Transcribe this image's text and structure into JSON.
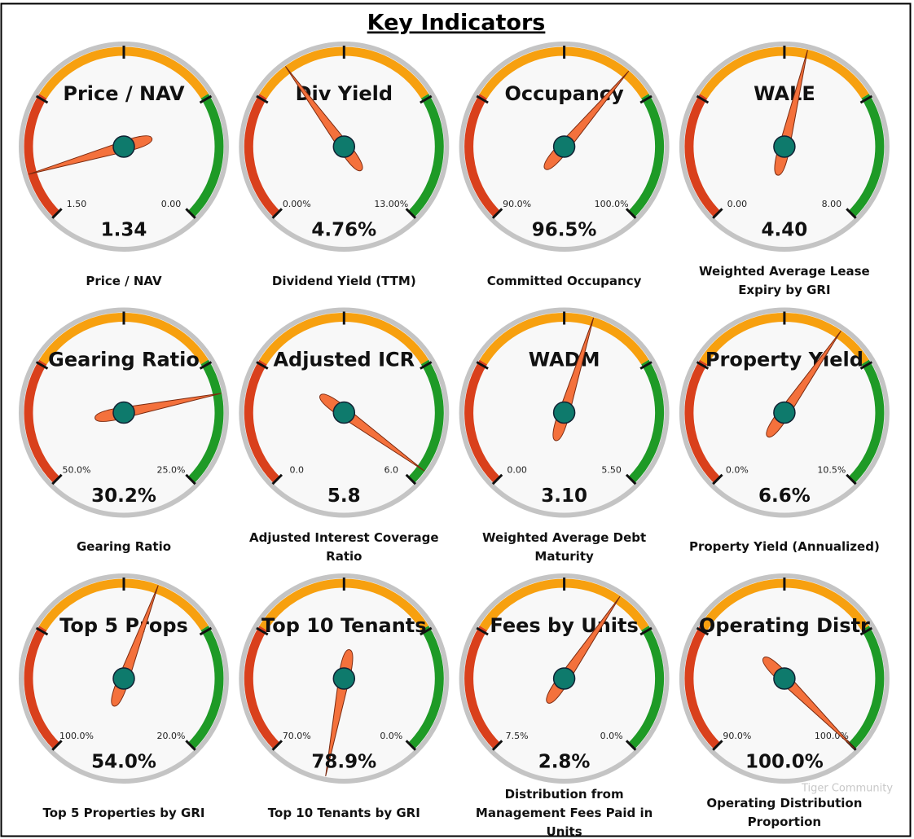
{
  "title": "Key Indicators",
  "watermark": "Tiger Community",
  "chart_data": [
    {
      "type": "gauge",
      "title": "Price / NAV",
      "subtitle": "Price / NAV",
      "ylim": [
        1.5,
        0
      ],
      "yticks": [
        {
          "value": 1.5,
          "label": "1.50"
        },
        {
          "value": 0,
          "label": "0.00"
        }
      ],
      "values": [
        1.34
      ]
    },
    {
      "type": "gauge",
      "title": "Div Yield",
      "subtitle": "Dividend Yield (TTM)",
      "ylim": [
        0,
        13
      ],
      "yticks": [
        {
          "value": 0,
          "label": "0.00%"
        },
        {
          "value": 13,
          "label": "13.00%"
        }
      ],
      "values": [
        4.76
      ],
      "value_labels": [
        "4.76%"
      ]
    },
    {
      "type": "gauge",
      "title": "Occupancy",
      "subtitle": "Committed Occupancy",
      "ylim": [
        90,
        100
      ],
      "yticks": [
        {
          "value": 90,
          "label": "90.0%"
        },
        {
          "value": 100,
          "label": "100.0%"
        }
      ],
      "values": [
        96.5
      ],
      "value_labels": [
        "96.5%"
      ]
    },
    {
      "type": "gauge",
      "title": "WALE",
      "subtitle": "Weighted Average Lease Expiry by GRI",
      "ylim": [
        0,
        8
      ],
      "yticks": [
        {
          "value": 0,
          "label": "0.00"
        },
        {
          "value": 8,
          "label": "8.00"
        }
      ],
      "values": [
        4.4
      ],
      "value_labels": [
        "4.40"
      ]
    },
    {
      "type": "gauge",
      "title": "Gearing Ratio",
      "subtitle": "Gearing Ratio",
      "ylim": [
        50,
        25
      ],
      "yticks": [
        {
          "value": 50,
          "label": "50.0%"
        },
        {
          "value": 25,
          "label": "25.0%"
        }
      ],
      "values": [
        30.2
      ],
      "value_labels": [
        "30.2%"
      ]
    },
    {
      "type": "gauge",
      "title": "Adjusted ICR",
      "subtitle": "Adjusted Interest Coverage Ratio",
      "ylim": [
        0,
        6
      ],
      "yticks": [
        {
          "value": 0,
          "label": "0.0"
        },
        {
          "value": 6,
          "label": "6.0"
        }
      ],
      "values": [
        5.8
      ]
    },
    {
      "type": "gauge",
      "title": "WADM",
      "subtitle": "Weighted Average Debt Maturity",
      "ylim": [
        0,
        5.5
      ],
      "yticks": [
        {
          "value": 0,
          "label": "0.00"
        },
        {
          "value": 5.5,
          "label": "5.50"
        }
      ],
      "values": [
        3.1
      ],
      "value_labels": [
        "3.10"
      ]
    },
    {
      "type": "gauge",
      "title": "Property Yield",
      "subtitle": "Property Yield (Annualized)",
      "ylim": [
        0,
        10.5
      ],
      "yticks": [
        {
          "value": 0,
          "label": "0.0%"
        },
        {
          "value": 10.5,
          "label": "10.5%"
        }
      ],
      "values": [
        6.6
      ],
      "value_labels": [
        "6.6%"
      ]
    },
    {
      "type": "gauge",
      "title": "Top 5 Props",
      "subtitle": "Top 5 Properties by GRI",
      "ylim": [
        100,
        20
      ],
      "yticks": [
        {
          "value": 100,
          "label": "100.0%"
        },
        {
          "value": 20,
          "label": "20.0%"
        }
      ],
      "values": [
        54
      ],
      "value_labels": [
        "54.0%"
      ]
    },
    {
      "type": "gauge",
      "title": "Top 10 Tenants",
      "subtitle": "Top 10 Tenants by GRI",
      "ylim": [
        70,
        0
      ],
      "yticks": [
        {
          "value": 70,
          "label": "70.0%"
        },
        {
          "value": 0,
          "label": "0.0%"
        }
      ],
      "values": [
        78.9
      ],
      "value_labels": [
        "78.9%"
      ]
    },
    {
      "type": "gauge",
      "title": "Fees by Units",
      "subtitle": "Distribution from Management Fees Paid in Units",
      "ylim": [
        7.5,
        0
      ],
      "yticks": [
        {
          "value": 7.5,
          "label": "7.5%"
        },
        {
          "value": 0,
          "label": "0.0%"
        }
      ],
      "values": [
        2.8
      ],
      "value_labels": [
        "2.8%"
      ]
    },
    {
      "type": "gauge",
      "title": "Operating Distr",
      "subtitle": "Operating Distribution Proportion",
      "ylim": [
        90,
        100
      ],
      "yticks": [
        {
          "value": 90,
          "label": "90.0%"
        },
        {
          "value": 100,
          "label": "100.0%"
        }
      ],
      "values": [
        100
      ],
      "value_labels": [
        "100.0%"
      ]
    }
  ]
}
